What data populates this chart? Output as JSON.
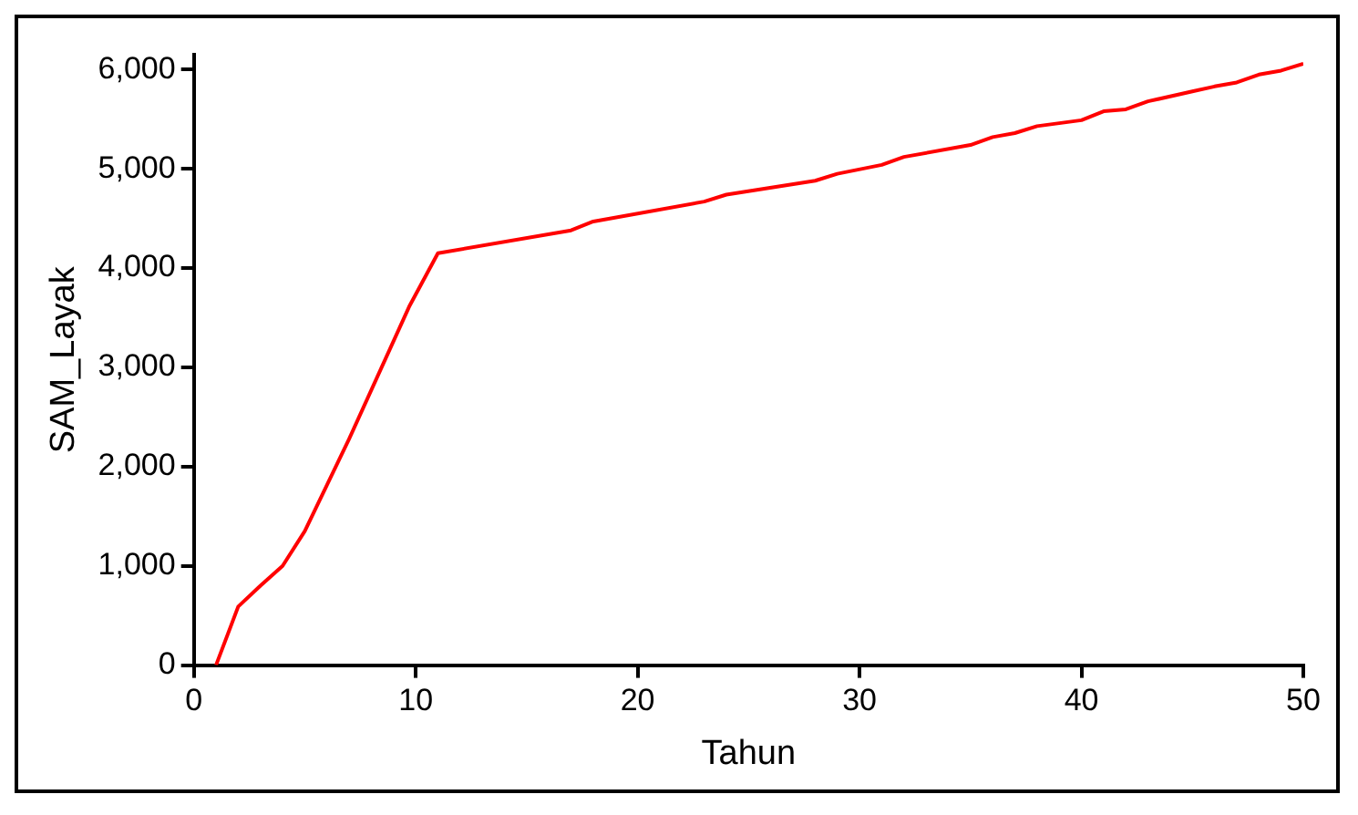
{
  "chart_data": {
    "type": "line",
    "xlabel": "Tahun",
    "ylabel": "SAM_Layak",
    "x": [
      1,
      2,
      3,
      4,
      5,
      7,
      9.7,
      11,
      17,
      18,
      23,
      24,
      28,
      29,
      31,
      32,
      35,
      36,
      37,
      38,
      40,
      41,
      42,
      43,
      45,
      46,
      47,
      48,
      49,
      50
    ],
    "series": [
      {
        "color": "#ff0000",
        "values": [
          0,
          590,
          800,
          1000,
          1350,
          2280,
          3610,
          4150,
          4380,
          4470,
          4670,
          4740,
          4880,
          4950,
          5040,
          5120,
          5240,
          5320,
          5360,
          5430,
          5490,
          5580,
          5600,
          5680,
          5780,
          5830,
          5870,
          5950,
          5990,
          6060
        ]
      }
    ],
    "xlim": [
      0,
      50
    ],
    "xticks": [
      0,
      10,
      20,
      30,
      40,
      50
    ],
    "ylim": [
      0,
      6150
    ],
    "yticks": [
      0,
      {
        "value": 1000,
        "label": "1,000"
      },
      {
        "value": 2000,
        "label": "2,000"
      },
      {
        "value": 3000,
        "label": "3,000"
      },
      {
        "value": 4000,
        "label": "4,000"
      },
      {
        "value": 5000,
        "label": "5,000"
      },
      {
        "value": 6000,
        "label": "6,000"
      }
    ],
    "grid": false,
    "legend": false,
    "marker": "none",
    "line_style": "solid"
  }
}
